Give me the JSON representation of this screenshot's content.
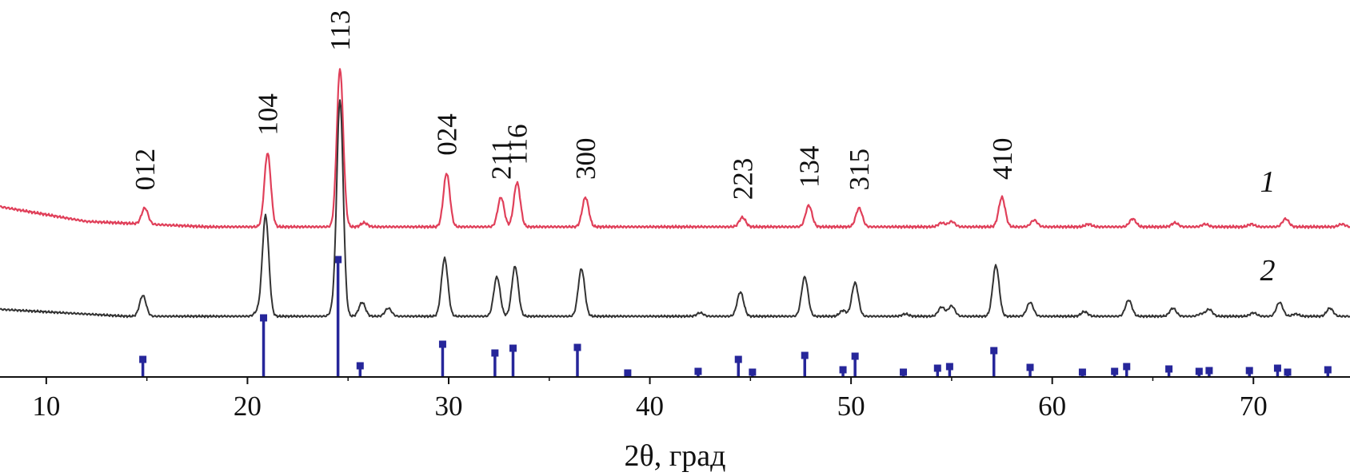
{
  "chart_data": {
    "type": "line",
    "title": "",
    "xlabel": "2θ, град",
    "ylabel": "",
    "xlim": [
      7.7,
      74.8
    ],
    "x_ticks": [
      10,
      20,
      30,
      40,
      50,
      60,
      70
    ],
    "grid": false,
    "legend": "none",
    "colors": {
      "curve1": "#e0405a",
      "curve2": "#333333",
      "reference": "#26269a",
      "axis": "#111111"
    },
    "series": [
      {
        "name": "1",
        "baseline": [
          [
            7.7,
            0.15
          ],
          [
            12,
            0.04
          ],
          [
            18,
            0.0
          ],
          [
            30,
            0.0
          ],
          [
            74.8,
            0.0
          ]
        ],
        "peaks": [
          [
            14.9,
            0.12
          ],
          [
            21.0,
            0.55
          ],
          [
            24.6,
            1.18
          ],
          [
            25.8,
            0.03
          ],
          [
            29.9,
            0.4
          ],
          [
            32.6,
            0.22
          ],
          [
            33.4,
            0.33
          ],
          [
            36.8,
            0.22
          ],
          [
            44.6,
            0.07
          ],
          [
            47.9,
            0.16
          ],
          [
            50.4,
            0.14
          ],
          [
            54.5,
            0.03
          ],
          [
            55.0,
            0.04
          ],
          [
            57.5,
            0.22
          ],
          [
            59.1,
            0.05
          ],
          [
            61.8,
            0.02
          ],
          [
            64.0,
            0.06
          ],
          [
            66.1,
            0.03
          ],
          [
            67.6,
            0.02
          ],
          [
            69.9,
            0.02
          ],
          [
            71.6,
            0.06
          ],
          [
            74.4,
            0.02
          ]
        ]
      },
      {
        "name": "2",
        "baseline": [
          [
            7.7,
            0.06
          ],
          [
            14,
            0.0
          ],
          [
            74.8,
            0.0
          ]
        ],
        "peaks": [
          [
            14.8,
            0.18
          ],
          [
            20.5,
            0.04
          ],
          [
            20.9,
            0.87
          ],
          [
            24.3,
            0.06
          ],
          [
            24.6,
            1.86
          ],
          [
            25.7,
            0.12
          ],
          [
            27.0,
            0.07
          ],
          [
            29.8,
            0.5
          ],
          [
            32.4,
            0.34
          ],
          [
            33.3,
            0.43
          ],
          [
            36.6,
            0.41
          ],
          [
            42.5,
            0.03
          ],
          [
            44.5,
            0.21
          ],
          [
            47.7,
            0.34
          ],
          [
            49.6,
            0.05
          ],
          [
            50.2,
            0.29
          ],
          [
            52.7,
            0.02
          ],
          [
            54.5,
            0.08
          ],
          [
            55.0,
            0.09
          ],
          [
            57.2,
            0.44
          ],
          [
            58.9,
            0.12
          ],
          [
            61.6,
            0.04
          ],
          [
            63.8,
            0.14
          ],
          [
            66.0,
            0.07
          ],
          [
            67.4,
            0.02
          ],
          [
            67.8,
            0.06
          ],
          [
            70.0,
            0.03
          ],
          [
            71.3,
            0.12
          ],
          [
            72.1,
            0.02
          ],
          [
            73.8,
            0.07
          ]
        ]
      }
    ],
    "reference_bars": {
      "name": "reference",
      "positions": [
        14.8,
        20.8,
        24.5,
        25.6,
        29.7,
        32.3,
        33.2,
        36.4,
        38.9,
        42.4,
        44.4,
        45.1,
        47.7,
        49.6,
        50.2,
        52.6,
        54.3,
        54.9,
        57.1,
        58.9,
        61.5,
        63.1,
        63.7,
        65.8,
        67.3,
        67.8,
        69.8,
        71.2,
        71.7,
        73.7
      ],
      "intensities": [
        22,
        74,
        147,
        14,
        41,
        30,
        36,
        37,
        5,
        7,
        22,
        6,
        27,
        9,
        26,
        6,
        11,
        13,
        33,
        12,
        6,
        7,
        13,
        10,
        7,
        8,
        8,
        11,
        6,
        9
      ]
    },
    "peak_labels": [
      {
        "text": "012",
        "x": 14.9
      },
      {
        "text": "104",
        "x": 21.0
      },
      {
        "text": "113",
        "x": 24.6
      },
      {
        "text": "024",
        "x": 29.9
      },
      {
        "text": "211",
        "x": 32.6
      },
      {
        "text": "116",
        "x": 33.4
      },
      {
        "text": "300",
        "x": 36.8
      },
      {
        "text": "223",
        "x": 44.6
      },
      {
        "text": "134",
        "x": 47.9
      },
      {
        "text": "315",
        "x": 50.4
      },
      {
        "text": "410",
        "x": 57.5
      }
    ]
  }
}
